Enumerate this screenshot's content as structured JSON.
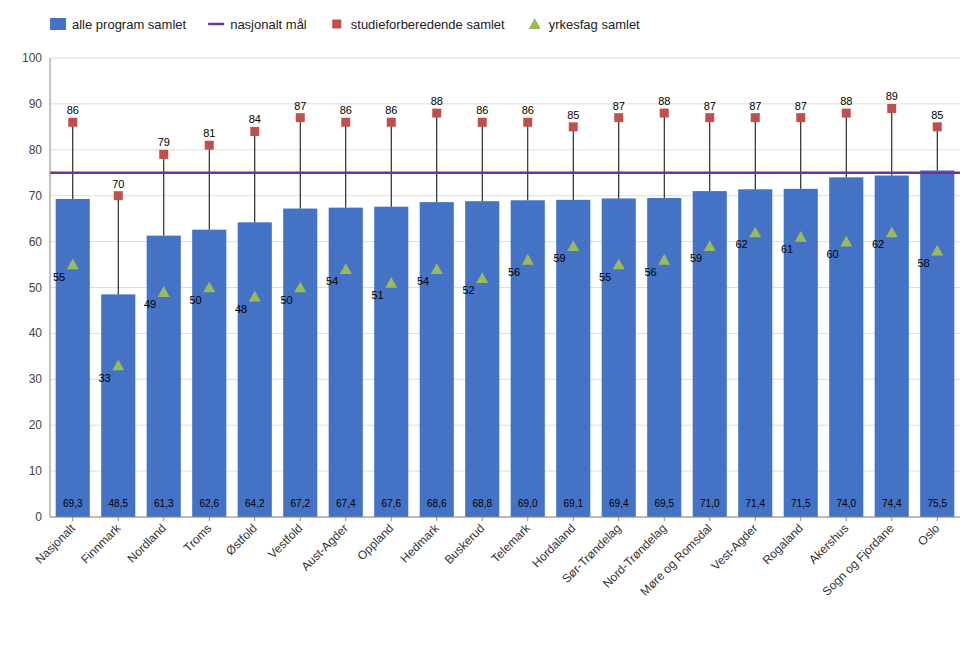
{
  "chart_data": {
    "type": "bar",
    "categories": [
      "Nasjonalt",
      "Finnmark",
      "Nordland",
      "Troms",
      "Østfold",
      "Vestfold",
      "Aust-Agder",
      "Oppland",
      "Hedmark",
      "Buskerud",
      "Telemark",
      "Hordaland",
      "Sør-Trøndelag",
      "Nord-Trøndelag",
      "Møre og Romsdal",
      "Vest-Agder",
      "Rogaland",
      "Akershus",
      "Sogn og Fjordane",
      "Oslo"
    ],
    "series": [
      {
        "name": "alle program samlet",
        "type": "bar",
        "color": "#4472C4",
        "values": [
          69.3,
          48.5,
          61.3,
          62.6,
          64.2,
          67.2,
          67.4,
          67.6,
          68.6,
          68.8,
          69.0,
          69.1,
          69.4,
          69.5,
          71.0,
          71.4,
          71.5,
          74.0,
          74.4,
          75.5
        ],
        "value_labels": [
          "69,3",
          "48,5",
          "61,3",
          "62,6",
          "64,2",
          "67,2",
          "67,4",
          "67,6",
          "68,6",
          "68,8",
          "69,0",
          "69,1",
          "69,4",
          "69,5",
          "71,0",
          "71,4",
          "71,5",
          "74,0",
          "74,4",
          "75,5"
        ]
      },
      {
        "name": "nasjonalt mål",
        "type": "hline",
        "color": "#7030A0",
        "value": 75
      },
      {
        "name": "studieforberedende samlet",
        "type": "scatter",
        "marker": "square",
        "color": "#C0504D",
        "values": [
          86,
          70,
          79,
          81,
          84,
          87,
          86,
          86,
          88,
          86,
          86,
          85,
          87,
          88,
          87,
          87,
          87,
          88,
          89,
          85
        ]
      },
      {
        "name": "yrkesfag samlet",
        "type": "scatter",
        "marker": "triangle",
        "color": "#9BBB59",
        "values": [
          55,
          33,
          49,
          50,
          48,
          50,
          54,
          51,
          54,
          52,
          56,
          59,
          55,
          56,
          59,
          62,
          61,
          60,
          62,
          58
        ]
      }
    ],
    "ylim": [
      0,
      100
    ],
    "yticks": [
      0,
      10,
      20,
      30,
      40,
      50,
      60,
      70,
      80,
      90,
      100
    ],
    "grid": true,
    "legend": "upper left",
    "data_labels": true
  }
}
